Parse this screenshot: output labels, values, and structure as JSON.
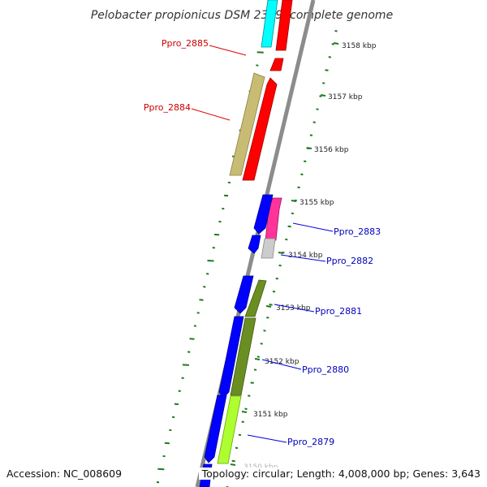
{
  "title": "Pelobacter propionicus DSM 2379, complete genome",
  "footer": {
    "accession": "Accession: NC_008609",
    "topology": "Topology: circular; Length: 4,008,000 bp; Genes: 3,643"
  },
  "colors": {
    "backbone": "#8c8c8c",
    "gc_ticks": "#1e7a1e",
    "forward_label": "#cc0000",
    "reverse_label": "#0000bb"
  },
  "scale_labels": [
    "3158 kbp",
    "3157 kbp",
    "3156 kbp",
    "3155 kbp",
    "3154 kbp",
    "3153 kbp",
    "3152 kbp",
    "3151 kbp",
    "3150 kbp"
  ],
  "gene_labels": [
    {
      "text": "Ppro_2885",
      "strand": "forward"
    },
    {
      "text": "Ppro_2884",
      "strand": "forward"
    },
    {
      "text": "Ppro_2883",
      "strand": "reverse"
    },
    {
      "text": "Ppro_2882",
      "strand": "reverse"
    },
    {
      "text": "Ppro_2881",
      "strand": "reverse"
    },
    {
      "text": "Ppro_2880",
      "strand": "reverse"
    },
    {
      "text": "Ppro_2879",
      "strand": "reverse"
    }
  ]
}
